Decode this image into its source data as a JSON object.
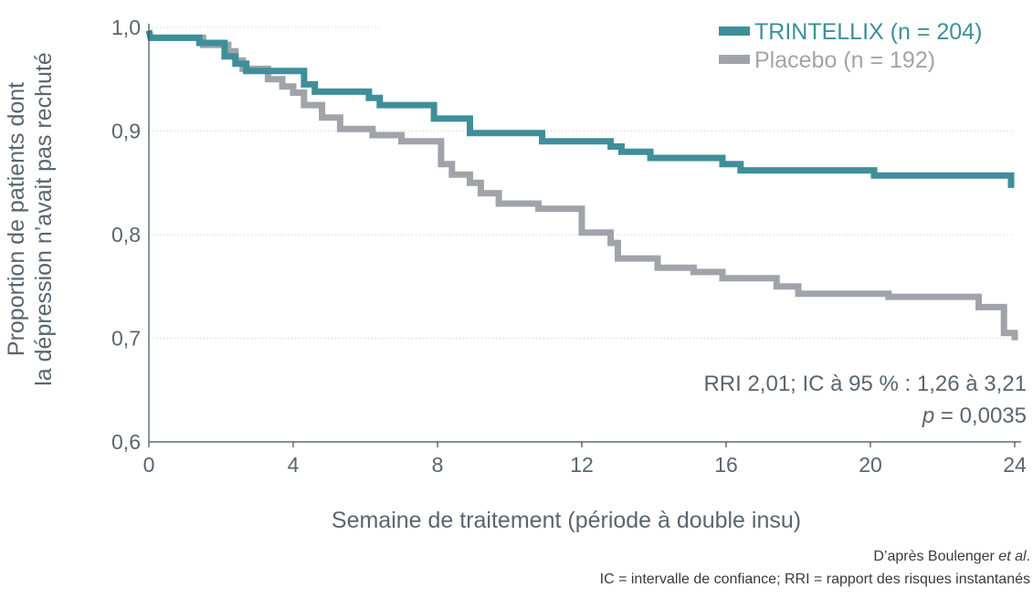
{
  "chart_data": {
    "type": "line",
    "subtype": "step (Kaplan-Meier)",
    "title": "",
    "xlabel": "Semaine de traitement (période à double insu)",
    "ylabel_lines": [
      "Proportion de patients dont",
      "la dépression n’avait pas rechuté"
    ],
    "xlim": [
      0,
      24
    ],
    "ylim": [
      0.6,
      1.0
    ],
    "x_ticks": [
      {
        "value": 0,
        "label": "0"
      },
      {
        "value": 4,
        "label": "4"
      },
      {
        "value": 8,
        "label": "8"
      },
      {
        "value": 12,
        "label": "12"
      },
      {
        "value": 16,
        "label": "16"
      },
      {
        "value": 20,
        "label": "20"
      },
      {
        "value": 24,
        "label": "24"
      }
    ],
    "y_ticks": [
      {
        "value": 0.6,
        "label": "0,6"
      },
      {
        "value": 0.7,
        "label": "0,7"
      },
      {
        "value": 0.8,
        "label": "0,8"
      },
      {
        "value": 0.9,
        "label": "0,9"
      },
      {
        "value": 1.0,
        "label": "1,0"
      }
    ],
    "grid": "horizontal dotted",
    "legend_position": "top-right",
    "series": [
      {
        "name": "TRINTELLIX (n = 204)",
        "color": "#3e8f9a",
        "points": [
          [
            0,
            0.997
          ],
          [
            0.05,
            0.99
          ],
          [
            1.4,
            0.99
          ],
          [
            1.4,
            0.985
          ],
          [
            2.1,
            0.985
          ],
          [
            2.1,
            0.972
          ],
          [
            2.4,
            0.972
          ],
          [
            2.4,
            0.965
          ],
          [
            2.7,
            0.965
          ],
          [
            2.7,
            0.958
          ],
          [
            4.3,
            0.958
          ],
          [
            4.3,
            0.945
          ],
          [
            4.6,
            0.945
          ],
          [
            4.6,
            0.938
          ],
          [
            6.1,
            0.938
          ],
          [
            6.1,
            0.932
          ],
          [
            6.4,
            0.932
          ],
          [
            6.4,
            0.925
          ],
          [
            7.9,
            0.925
          ],
          [
            7.9,
            0.912
          ],
          [
            8.9,
            0.912
          ],
          [
            8.9,
            0.898
          ],
          [
            10.9,
            0.898
          ],
          [
            10.9,
            0.89
          ],
          [
            12.8,
            0.89
          ],
          [
            12.8,
            0.885
          ],
          [
            13.1,
            0.885
          ],
          [
            13.1,
            0.88
          ],
          [
            13.9,
            0.88
          ],
          [
            13.9,
            0.874
          ],
          [
            15.9,
            0.874
          ],
          [
            15.9,
            0.868
          ],
          [
            16.4,
            0.868
          ],
          [
            16.4,
            0.862
          ],
          [
            20.1,
            0.862
          ],
          [
            20.1,
            0.857
          ],
          [
            23.9,
            0.857
          ],
          [
            23.9,
            0.845
          ]
        ]
      },
      {
        "name": "Placebo (n = 192)",
        "color": "#a0a4aa",
        "points": [
          [
            0,
            0.99
          ],
          [
            1.5,
            0.99
          ],
          [
            1.5,
            0.983
          ],
          [
            2.2,
            0.983
          ],
          [
            2.2,
            0.977
          ],
          [
            2.4,
            0.977
          ],
          [
            2.4,
            0.968
          ],
          [
            2.6,
            0.968
          ],
          [
            2.6,
            0.96
          ],
          [
            3.3,
            0.96
          ],
          [
            3.3,
            0.95
          ],
          [
            3.7,
            0.95
          ],
          [
            3.7,
            0.943
          ],
          [
            4.0,
            0.943
          ],
          [
            4.0,
            0.937
          ],
          [
            4.3,
            0.937
          ],
          [
            4.3,
            0.925
          ],
          [
            4.8,
            0.925
          ],
          [
            4.8,
            0.913
          ],
          [
            5.3,
            0.913
          ],
          [
            5.3,
            0.902
          ],
          [
            6.2,
            0.902
          ],
          [
            6.2,
            0.896
          ],
          [
            7.0,
            0.896
          ],
          [
            7.0,
            0.89
          ],
          [
            8.1,
            0.89
          ],
          [
            8.1,
            0.868
          ],
          [
            8.4,
            0.868
          ],
          [
            8.4,
            0.858
          ],
          [
            8.9,
            0.858
          ],
          [
            8.9,
            0.85
          ],
          [
            9.2,
            0.85
          ],
          [
            9.2,
            0.84
          ],
          [
            9.7,
            0.84
          ],
          [
            9.7,
            0.83
          ],
          [
            10.8,
            0.83
          ],
          [
            10.8,
            0.825
          ],
          [
            12.0,
            0.825
          ],
          [
            12.0,
            0.802
          ],
          [
            12.8,
            0.802
          ],
          [
            12.8,
            0.792
          ],
          [
            13.0,
            0.792
          ],
          [
            13.0,
            0.777
          ],
          [
            14.1,
            0.777
          ],
          [
            14.1,
            0.768
          ],
          [
            15.1,
            0.768
          ],
          [
            15.1,
            0.764
          ],
          [
            15.9,
            0.764
          ],
          [
            15.9,
            0.758
          ],
          [
            17.4,
            0.758
          ],
          [
            17.4,
            0.75
          ],
          [
            18.0,
            0.75
          ],
          [
            18.0,
            0.743
          ],
          [
            20.5,
            0.743
          ],
          [
            20.5,
            0.74
          ],
          [
            23.0,
            0.74
          ],
          [
            23.0,
            0.73
          ],
          [
            23.7,
            0.73
          ],
          [
            23.7,
            0.705
          ],
          [
            24.0,
            0.705
          ],
          [
            24.0,
            0.698
          ]
        ]
      }
    ],
    "annotations": {
      "stats_line1": "RRI 2,01; IC à 95 % : 1,26 à 3,21",
      "stats_p": "p",
      "stats_p_rest": " = 0,0035"
    }
  },
  "footnotes": {
    "source_prefix": "D’après Boulenger ",
    "source_italic": "et al",
    "source_suffix": ".",
    "abbreviations": "IC = intervalle de confiance; RRI = rapport des risques instantanés"
  }
}
